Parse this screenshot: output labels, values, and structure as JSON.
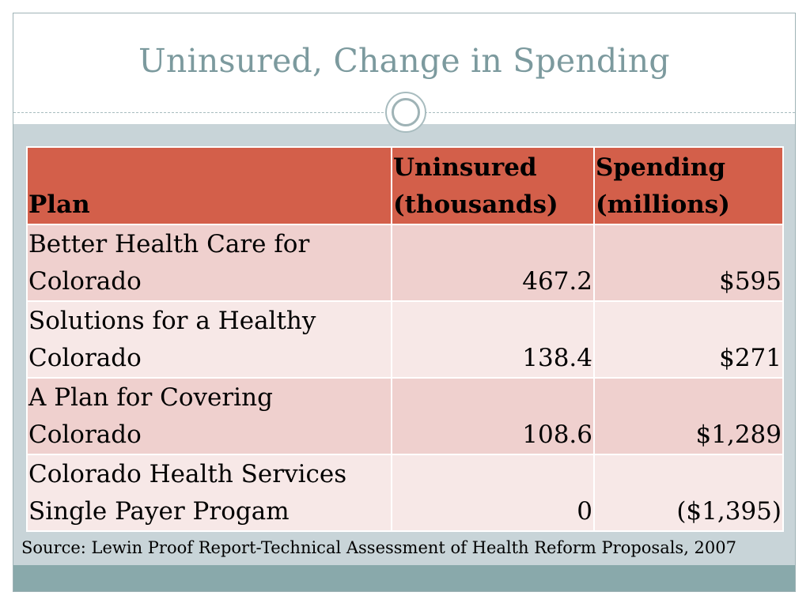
{
  "slide": {
    "title": "Uninsured, Change in Spending",
    "source": "Source: Lewin Proof Report-Technical Assessment of Health Reform Proposals, 2007"
  },
  "table": {
    "headers": {
      "plan": "Plan",
      "uninsured_line1": "Uninsured",
      "uninsured_line2": "(thousands)",
      "spending_line1": "Spending",
      "spending_line2": "(millions)"
    },
    "rows": [
      {
        "plan_line1": "Better Health Care for",
        "plan_line2": "Colorado",
        "uninsured": "467.2",
        "spending": "$595"
      },
      {
        "plan_line1": "Solutions for a Healthy",
        "plan_line2": "Colorado",
        "uninsured": "138.4",
        "spending": "$271"
      },
      {
        "plan_line1": "A Plan for Covering",
        "plan_line2": "Colorado",
        "uninsured": "108.6",
        "spending": "$1,289"
      },
      {
        "plan_line1": "Colorado Health Services",
        "plan_line2": "Single Payer Progam",
        "uninsured": "0",
        "spending": "($1,395)"
      }
    ]
  },
  "colors": {
    "title": "#7c9a9e",
    "header_bg": "#d35f4a",
    "row_odd_bg": "#efd0ce",
    "row_even_bg": "#f7e8e7",
    "content_bg": "#c8d4d8",
    "bottom_band": "#89a9ab"
  }
}
